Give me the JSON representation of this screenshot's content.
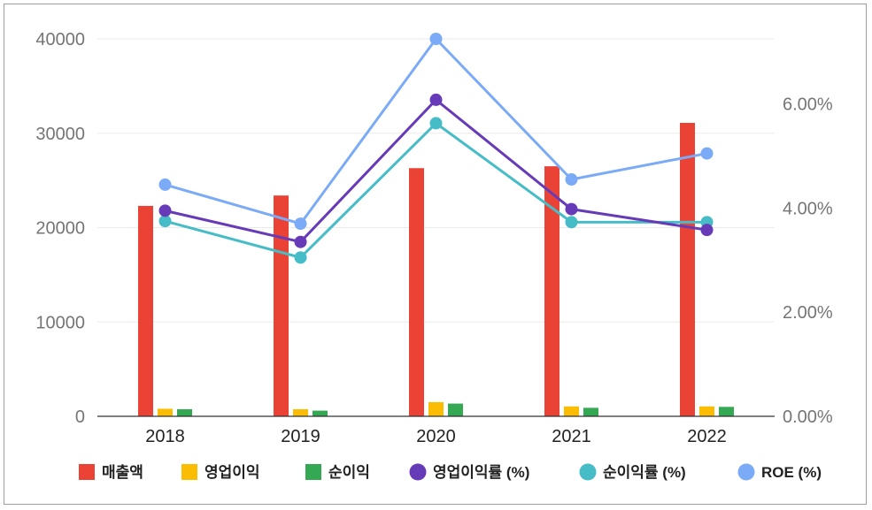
{
  "chart_data": {
    "type": "bar",
    "categories": [
      "2018",
      "2019",
      "2020",
      "2021",
      "2022"
    ],
    "bar_series": [
      {
        "name": "매출액",
        "color": "#ea4335",
        "values": [
          22300,
          23400,
          26300,
          26500,
          31100
        ]
      },
      {
        "name": "영업이익",
        "color": "#fbbc04",
        "values": [
          800,
          750,
          1500,
          1050,
          1050
        ]
      },
      {
        "name": "순이익",
        "color": "#34a853",
        "values": [
          750,
          600,
          1350,
          900,
          1000
        ]
      }
    ],
    "line_series": [
      {
        "name": "영업이익률 (%)",
        "color": "#673ab7",
        "values": [
          3.95,
          3.35,
          6.08,
          3.98,
          3.58
        ]
      },
      {
        "name": "순이익률 (%)",
        "color": "#46bdc6",
        "values": [
          3.75,
          3.05,
          5.63,
          3.73,
          3.73
        ]
      },
      {
        "name": "ROE (%)",
        "color": "#7baaf7",
        "values": [
          4.45,
          3.7,
          7.25,
          4.55,
          5.05
        ]
      }
    ],
    "y_left": {
      "ticks": [
        "0",
        "10000",
        "20000",
        "30000",
        "40000"
      ],
      "range": [
        0,
        40000
      ]
    },
    "y_right": {
      "ticks": [
        "0.00%",
        "2.00%",
        "4.00%",
        "6.00%"
      ],
      "range": [
        0,
        7.25
      ]
    },
    "legend_position": "bottom",
    "grid": true
  }
}
